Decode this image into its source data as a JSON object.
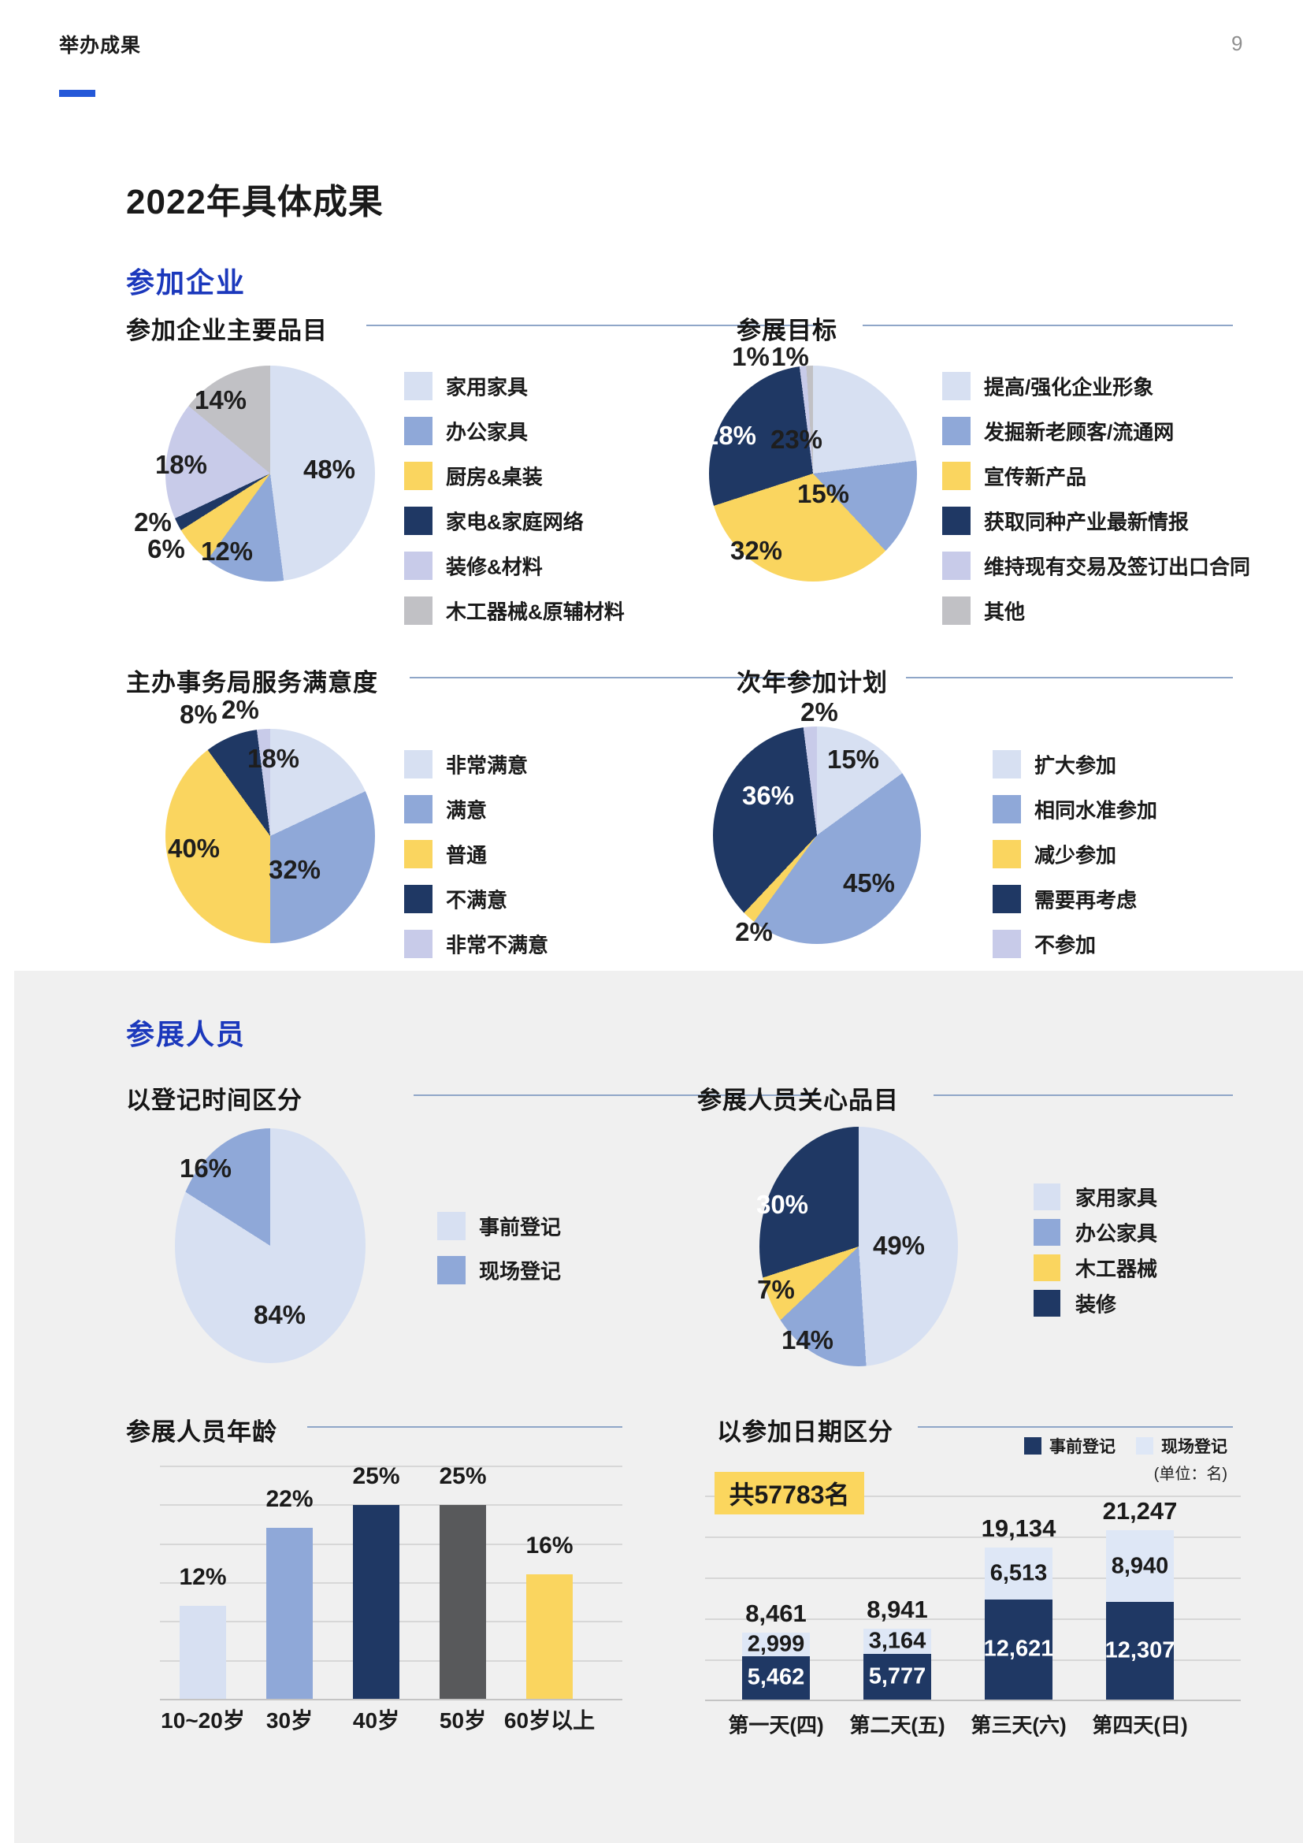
{
  "page": {
    "header": "举办成果",
    "page_number": "9",
    "title": "2022年具体成果",
    "sections": [
      "参加企业",
      "参展人员"
    ]
  },
  "palette": {
    "light_blue": "#D7E0F2",
    "pale_blue": "#DEE7F6",
    "medium_blue": "#8FA8D8",
    "yellow": "#FAD55F",
    "navy": "#1F3864",
    "lavender": "#C8CBE9",
    "gray": "#C1C1C5",
    "dark_gray": "#58595B",
    "heading_blue": "#1B38BC",
    "accent_blue": "#2458D8",
    "title_line": "#8FA6C8",
    "badge_yellow": "#FBD65E"
  },
  "chart_data": [
    {
      "id": "exhibitor-main-items",
      "type": "pie",
      "title": "参加企业主要品目",
      "slices": [
        {
          "label": "家用家具",
          "value": 48,
          "color": "light_blue",
          "label_x": 418,
          "label_y": 596
        },
        {
          "label": "办公家具",
          "value": 12,
          "color": "medium_blue",
          "label_x": 288,
          "label_y": 700
        },
        {
          "label": "厨房&桌装",
          "value": 6,
          "color": "yellow",
          "label_pos": "out",
          "label_x": 211,
          "label_y": 697
        },
        {
          "label": "家电&家庭网络",
          "value": 2,
          "color": "navy",
          "label_pos": "out",
          "label_x": 194,
          "label_y": 663
        },
        {
          "label": "装修&材料",
          "value": 18,
          "color": "lavender",
          "label_x": 230,
          "label_y": 590
        },
        {
          "label": "木工器械&原辅材料",
          "value": 14,
          "color": "gray",
          "label_x": 280,
          "label_y": 508
        }
      ]
    },
    {
      "id": "exhibit-goals",
      "type": "pie",
      "title": "参展目标",
      "slices": [
        {
          "label": "提高/强化企业形象",
          "value": 23,
          "color": "light_blue",
          "label_x": 1011,
          "label_y": 558
        },
        {
          "label": "发掘新老顾客/流通网",
          "value": 15,
          "color": "medium_blue",
          "label_x": 1045,
          "label_y": 627
        },
        {
          "label": "宣传新产品",
          "value": 32,
          "color": "yellow",
          "label_x": 960,
          "label_y": 699
        },
        {
          "label": "获取同种产业最新情报",
          "value": 28,
          "color": "navy",
          "label_white": true,
          "label_x": 927,
          "label_y": 553
        },
        {
          "label": "维持现有交易及签订出口合同",
          "value": 1,
          "color": "lavender",
          "label_pos": "out",
          "label_x": 953,
          "label_y": 453
        },
        {
          "label": "其他",
          "value": 1,
          "color": "gray",
          "label_pos": "out",
          "label_x": 1003,
          "label_y": 453
        }
      ]
    },
    {
      "id": "service-satisfaction",
      "type": "pie",
      "title": "主办事务局服务满意度",
      "slices": [
        {
          "label": "非常满意",
          "value": 18,
          "color": "light_blue",
          "label_x": 347,
          "label_y": 963
        },
        {
          "label": "满意",
          "value": 32,
          "color": "medium_blue",
          "label_x": 374,
          "label_y": 1104
        },
        {
          "label": "普通",
          "value": 40,
          "color": "yellow",
          "label_x": 246,
          "label_y": 1077
        },
        {
          "label": "不满意",
          "value": 8,
          "color": "navy",
          "label_pos": "out",
          "label_x": 252,
          "label_y": 907
        },
        {
          "label": "非常不满意",
          "value": 2,
          "color": "lavender",
          "label_pos": "out",
          "label_x": 305,
          "label_y": 901
        }
      ]
    },
    {
      "id": "next-year-plan",
      "type": "pie",
      "title": "次年参加计划",
      "slices": [
        {
          "label": "扩大参加",
          "value": 15,
          "color": "light_blue",
          "label_x": 1083,
          "label_y": 964
        },
        {
          "label": "相同水准参加",
          "value": 45,
          "color": "medium_blue",
          "label_x": 1103,
          "label_y": 1121
        },
        {
          "label": "减少参加",
          "value": 2,
          "color": "yellow",
          "label_pos": "out",
          "label_x": 957,
          "label_y": 1183
        },
        {
          "label": "需要再考虑",
          "value": 36,
          "color": "navy",
          "label_white": true,
          "label_x": 975,
          "label_y": 1010
        },
        {
          "label": "不参加",
          "value": 2,
          "color": "lavender",
          "label_pos": "out",
          "label_x": 1040,
          "label_y": 904
        }
      ]
    },
    {
      "id": "registration-time",
      "type": "pie",
      "title": "以登记时间区分",
      "slices": [
        {
          "label": "事前登记",
          "value": 84,
          "color": "light_blue",
          "label_x": 355,
          "label_y": 1669
        },
        {
          "label": "现场登记",
          "value": 16,
          "color": "medium_blue",
          "label_x": 261,
          "label_y": 1483
        }
      ]
    },
    {
      "id": "visitor-interest-items",
      "type": "pie",
      "title": "参展人员关心品目",
      "slices": [
        {
          "label": "家用家具",
          "value": 49,
          "color": "light_blue",
          "label_x": 1141,
          "label_y": 1581
        },
        {
          "label": "办公家具",
          "value": 14,
          "color": "medium_blue",
          "label_x": 1025,
          "label_y": 1701
        },
        {
          "label": "木工器械",
          "value": 7,
          "color": "yellow",
          "label_x": 985,
          "label_y": 1637
        },
        {
          "label": "装修",
          "value": 30,
          "color": "navy",
          "label_white": true,
          "label_x": 993,
          "label_y": 1529
        }
      ]
    },
    {
      "id": "visitor-age",
      "type": "bar",
      "title": "参展人员年龄",
      "categories": [
        "10~20岁",
        "30岁",
        "40岁",
        "50岁",
        "60岁以上"
      ],
      "values": [
        12,
        22,
        25,
        25,
        16
      ],
      "colors": [
        "light_blue",
        "medium_blue",
        "navy",
        "dark_gray",
        "yellow"
      ],
      "unit": "%",
      "ylim": [
        0,
        30
      ],
      "grid_step": 5,
      "grid": true
    },
    {
      "id": "by-attendance-date",
      "type": "stacked-bar",
      "title": "以参加日期区分",
      "total_note": "共57783名",
      "unit_note": "(单位：名)",
      "categories": [
        "第一天(四)",
        "第二天(五)",
        "第三天(六)",
        "第四天(日)"
      ],
      "series": [
        {
          "name": "事前登记",
          "color": "navy",
          "values": [
            5462,
            5777,
            12621,
            12307
          ]
        },
        {
          "name": "现场登记",
          "color": "pale_blue",
          "values": [
            2999,
            3164,
            6513,
            8940
          ]
        }
      ],
      "totals": [
        8461,
        8941,
        19134,
        21247
      ],
      "grid": true,
      "legend_position": "top-right"
    }
  ]
}
